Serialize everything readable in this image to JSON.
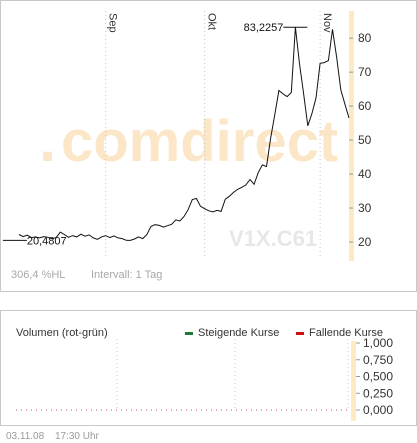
{
  "price_chart": {
    "watermark_logo": "comdirect",
    "symbol_watermark": "V1X.C61",
    "info_left": "306,4 %HL",
    "info_interval": "Intervall: 1 Tag",
    "month_labels": [
      "Sep",
      "Okt",
      "Nov"
    ],
    "colors": {
      "axis_band": "#fde9c4",
      "line": "#111111",
      "grid": "#c8c8c8",
      "watermark": "#e7e7e7",
      "logo_orange": "#fbe7c8"
    }
  },
  "volume_chart": {
    "title": "Volumen (rot-grün)",
    "legend": [
      {
        "label": "Steigende Kurse",
        "color": "#1a7a3a"
      },
      {
        "label": "Fallende Kurse",
        "color": "#cc1111"
      }
    ]
  },
  "footer": {
    "date": "03.11.08",
    "time": "17:30 Uhr"
  },
  "chart_data": [
    {
      "type": "line",
      "title": "",
      "xlabel": "",
      "ylabel": "",
      "ylim": [
        15,
        88
      ],
      "yticks": [
        20,
        30,
        40,
        50,
        60,
        70,
        80
      ],
      "grid": "vertical dotted at month boundaries",
      "x_month_markers": [
        "Sep",
        "Okt",
        "Nov"
      ],
      "annotations": [
        {
          "label": "20,4807",
          "value": 20.4807,
          "kind": "min"
        },
        {
          "label": "83,2257",
          "value": 83.2257,
          "kind": "max"
        }
      ],
      "series": [
        {
          "values": [
            22.2,
            21.6,
            22.0,
            21.3,
            21.5,
            21.2,
            21.6,
            21.4,
            21.0,
            21.3,
            22.9,
            22.2,
            21.4,
            21.9,
            21.5,
            22.3,
            21.7,
            22.1,
            21.2,
            20.8,
            21.5,
            21.9,
            21.3,
            21.8,
            21.2,
            21.0,
            20.5,
            20.48,
            20.9,
            21.5,
            21.0,
            22.2,
            24.6,
            25.1,
            24.9,
            24.4,
            24.8,
            25.2,
            26.5,
            26.2,
            27.5,
            29.5,
            32.5,
            32.8,
            30.5,
            29.8,
            29.2,
            28.9,
            29.3,
            29.0,
            32.6,
            33.5,
            34.6,
            35.5,
            36.1,
            36.8,
            38.4,
            37.0,
            40.5,
            42.7,
            42.2,
            50.5,
            57.5,
            64.6,
            63.6,
            62.8,
            64.0,
            83.2257,
            72.5,
            63.7,
            54.2,
            57.8,
            62.4,
            72.6,
            72.8,
            73.4,
            82.6,
            74.5,
            64.8,
            60.6,
            56.5
          ]
        }
      ]
    },
    {
      "type": "bar",
      "title": "Volumen (rot-grün)",
      "ylim": [
        0,
        1
      ],
      "yticks": [
        "1,000",
        "0,750",
        "0,500",
        "0,250",
        "0,000"
      ],
      "series": [
        {
          "name": "Steigende Kurse",
          "values": []
        },
        {
          "name": "Fallende Kurse",
          "values": []
        }
      ]
    }
  ]
}
